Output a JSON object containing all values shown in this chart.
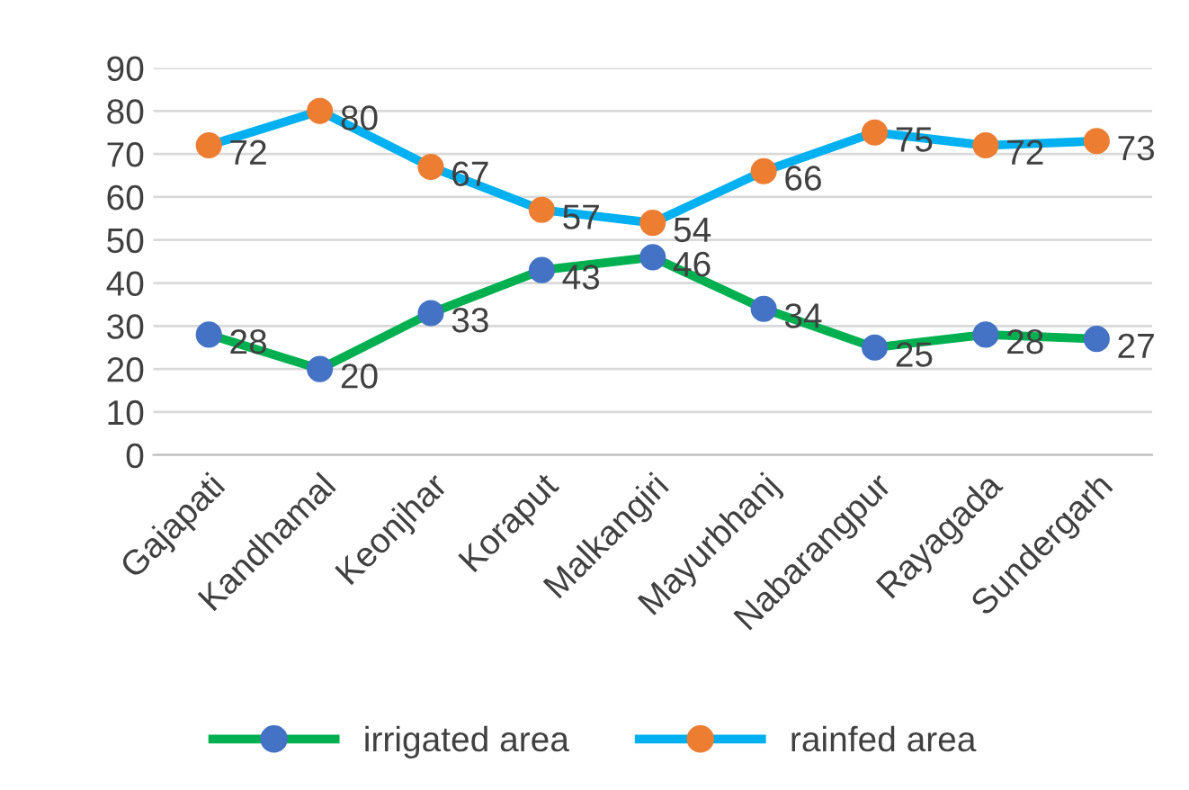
{
  "chart_data": {
    "type": "line",
    "categories": [
      "Gajapati",
      "Kandhamal",
      "Keonjhar",
      "Koraput",
      "Malkangiri",
      "Mayurbhanj",
      "Nabarangpur",
      "Rayagada",
      "Sundergarh"
    ],
    "series": [
      {
        "name": "irrigated area",
        "color": "#00b050",
        "colors": [
          "#4472c4",
          "#4472c4",
          "#4472c4",
          "#4472c4",
          "#4472c4",
          "#4472c4",
          "#4472c4",
          "#4472c4",
          "#4472c4"
        ],
        "values": [
          28,
          20,
          33,
          43,
          46,
          34,
          25,
          28,
          27
        ]
      },
      {
        "name": "rainfed area",
        "color": "#00b0f0",
        "colors": [
          "#ed7d31",
          "#ed7d31",
          "#ed7d31",
          "#ed7d31",
          "#ed7d31",
          "#ed7d31",
          "#ed7d31",
          "#ed7d31",
          "#ed7d31"
        ],
        "values": [
          72,
          80,
          67,
          57,
          54,
          66,
          75,
          72,
          73
        ]
      }
    ],
    "ylim": [
      0,
      90
    ],
    "yticks": [
      0,
      10,
      20,
      30,
      40,
      50,
      60,
      70,
      80,
      90
    ],
    "grid": "y",
    "legend": "bottom",
    "marker": "circle",
    "line_style": "solid",
    "data_labels": true
  }
}
